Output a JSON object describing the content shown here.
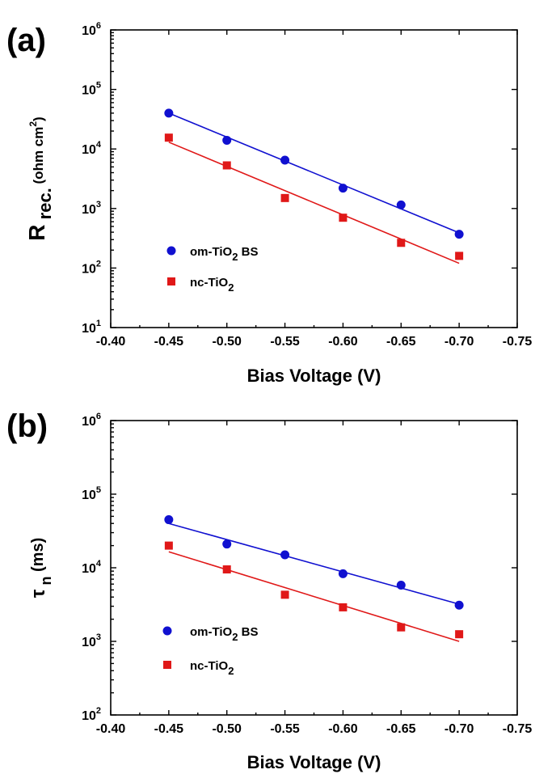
{
  "chart_data": [
    {
      "panel_label": "(a)",
      "type": "scatter",
      "xlabel": "Bias Voltage (V)",
      "ylabel": {
        "main": "R",
        "sub": "rec.",
        "unit_text": "(ohm cm",
        "unit_sup": "2",
        "unit_close": ")"
      },
      "x_ticks": [
        "-0.40",
        "-0.45",
        "-0.50",
        "-0.55",
        "-0.60",
        "-0.65",
        "-0.70",
        "-0.75"
      ],
      "xlim": [
        -0.4,
        -0.75
      ],
      "y_scale": "log",
      "ylim": [
        10,
        1000000
      ],
      "y_ticks": [
        {
          "base": "10",
          "exp": "1"
        },
        {
          "base": "10",
          "exp": "2"
        },
        {
          "base": "10",
          "exp": "3"
        },
        {
          "base": "10",
          "exp": "4"
        },
        {
          "base": "10",
          "exp": "5"
        },
        {
          "base": "10",
          "exp": "6"
        }
      ],
      "legend_position": "center-left",
      "series": [
        {
          "name": "om-TiO2 BS",
          "name_parts": [
            "om-TiO",
            "2",
            " BS"
          ],
          "color": "#1010d0",
          "marker": "circle",
          "x": [
            -0.45,
            -0.5,
            -0.55,
            -0.6,
            -0.65,
            -0.7
          ],
          "y": [
            40000,
            14000,
            6500,
            2200,
            1150,
            370
          ],
          "fit": {
            "x": [
              -0.45,
              -0.7
            ],
            "y": [
              40000,
              390
            ]
          }
        },
        {
          "name": "nc-TiO2",
          "name_parts": [
            "nc-TiO",
            "2",
            ""
          ],
          "color": "#e01818",
          "marker": "square",
          "x": [
            -0.45,
            -0.5,
            -0.55,
            -0.6,
            -0.65,
            -0.7
          ],
          "y": [
            15500,
            5300,
            1500,
            700,
            265,
            160
          ],
          "fit": {
            "x": [
              -0.45,
              -0.7
            ],
            "y": [
              13000,
              120
            ]
          }
        }
      ]
    },
    {
      "panel_label": "(b)",
      "type": "scatter",
      "xlabel": "Bias Voltage (V)",
      "ylabel": {
        "main": "τ",
        "sub": "n",
        "unit_text": "(ms)",
        "unit_sup": "",
        "unit_close": ""
      },
      "x_ticks": [
        "-0.40",
        "-0.45",
        "-0.50",
        "-0.55",
        "-0.60",
        "-0.65",
        "-0.70",
        "-0.75"
      ],
      "xlim": [
        -0.4,
        -0.75
      ],
      "y_scale": "log",
      "ylim": [
        100,
        1000000
      ],
      "y_ticks": [
        {
          "base": "10",
          "exp": "2"
        },
        {
          "base": "10",
          "exp": "3"
        },
        {
          "base": "10",
          "exp": "4"
        },
        {
          "base": "10",
          "exp": "5"
        },
        {
          "base": "10",
          "exp": "6"
        }
      ],
      "legend_position": "bottom-left",
      "series": [
        {
          "name": "om-TiO2 BS",
          "name_parts": [
            "om-TiO",
            "2",
            " BS"
          ],
          "color": "#1010d0",
          "marker": "circle",
          "x": [
            -0.45,
            -0.5,
            -0.55,
            -0.6,
            -0.65,
            -0.7
          ],
          "y": [
            45000,
            21000,
            15000,
            8300,
            5800,
            3100
          ],
          "fit": {
            "x": [
              -0.45,
              -0.7
            ],
            "y": [
              40000,
              3200
            ]
          }
        },
        {
          "name": "nc-TiO2",
          "name_parts": [
            "nc-TiO",
            "2",
            ""
          ],
          "color": "#e01818",
          "marker": "square",
          "x": [
            -0.45,
            -0.5,
            -0.55,
            -0.6,
            -0.65,
            -0.7
          ],
          "y": [
            20000,
            9500,
            4300,
            2900,
            1550,
            1250
          ],
          "fit": {
            "x": [
              -0.45,
              -0.7
            ],
            "y": [
              16500,
              1000
            ]
          }
        }
      ]
    }
  ]
}
